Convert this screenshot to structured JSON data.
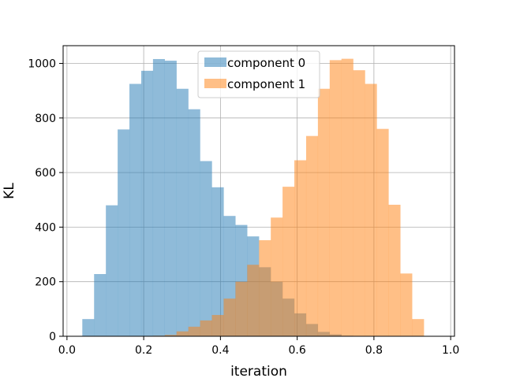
{
  "chart_data": {
    "type": "bar",
    "xlabel": "iteration",
    "ylabel": "KL",
    "xlim": [
      -0.01,
      1.01
    ],
    "ylim": [
      0,
      1065
    ],
    "xticks": [
      0.0,
      0.2,
      0.4,
      0.6,
      0.8,
      1.0
    ],
    "xtick_labels": [
      "0.0",
      "0.2",
      "0.4",
      "0.6",
      "0.8",
      "1.0"
    ],
    "yticks": [
      0,
      200,
      400,
      600,
      800,
      1000
    ],
    "ytick_labels": [
      "0",
      "200",
      "400",
      "600",
      "800",
      "1000"
    ],
    "grid": true,
    "legend_position": "upper center",
    "series": [
      {
        "name": "component 0",
        "color": "#1f77b4",
        "alpha": 0.5,
        "bin_start": 0.04,
        "bin_width": 0.0307,
        "values": [
          63,
          228,
          480,
          758,
          925,
          973,
          1016,
          1010,
          907,
          832,
          642,
          546,
          441,
          408,
          366,
          253,
          200,
          138,
          84,
          45,
          16,
          7,
          2,
          0,
          0,
          0,
          0,
          0,
          0,
          0
        ]
      },
      {
        "name": "component 1",
        "color": "#ff7f0e",
        "alpha": 0.5,
        "bin_start": 0.04,
        "bin_width": 0.0307,
        "values": [
          0,
          0,
          0,
          0,
          0,
          1,
          2,
          5,
          18,
          35,
          58,
          78,
          138,
          200,
          262,
          352,
          435,
          548,
          645,
          734,
          907,
          1012,
          1017,
          975,
          925,
          760,
          482,
          230,
          63,
          0
        ]
      }
    ]
  }
}
